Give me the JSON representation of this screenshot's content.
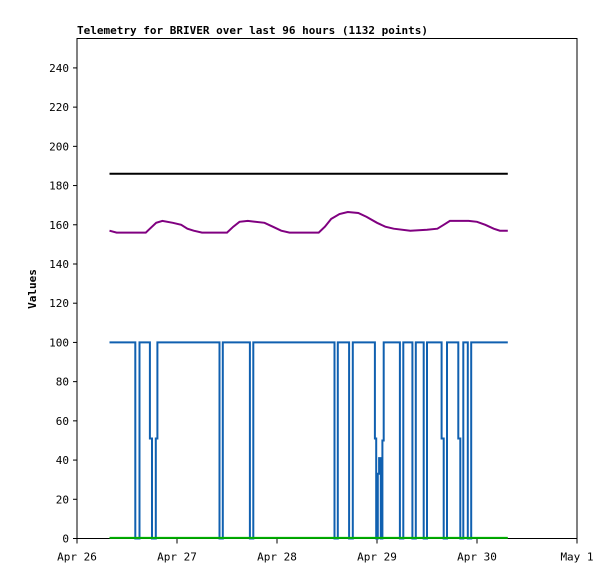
{
  "chart_data": {
    "type": "line",
    "title": "Telemetry for BRIVER over last 96 hours (1132 points)",
    "xlabel": "",
    "ylabel": "Values",
    "xlim": [
      0,
      120
    ],
    "ylim": [
      0,
      255
    ],
    "x_unit": "hours since Apr 26 00:00",
    "x_ticks": [
      {
        "x": 0,
        "label": "Apr 26"
      },
      {
        "x": 24,
        "label": "Apr 27"
      },
      {
        "x": 48,
        "label": "Apr 28"
      },
      {
        "x": 72,
        "label": "Apr 29"
      },
      {
        "x": 96,
        "label": "Apr 30"
      },
      {
        "x": 120,
        "label": "May 1"
      }
    ],
    "y_ticks": [
      0,
      20,
      40,
      60,
      80,
      100,
      120,
      140,
      160,
      180,
      200,
      220,
      240
    ],
    "grid": false,
    "series": [
      {
        "color": "#000000",
        "points": [
          [
            7.8,
            186
          ],
          [
            103.4,
            186
          ]
        ]
      },
      {
        "color": "#800080",
        "points": [
          [
            7.8,
            157
          ],
          [
            9.5,
            156
          ],
          [
            16.5,
            156
          ],
          [
            17.5,
            158
          ],
          [
            19.0,
            161
          ],
          [
            20.5,
            162
          ],
          [
            23.0,
            161
          ],
          [
            25.0,
            160
          ],
          [
            26.5,
            158
          ],
          [
            28.0,
            157
          ],
          [
            30.0,
            156
          ],
          [
            36.0,
            156
          ],
          [
            37.5,
            159
          ],
          [
            39.0,
            161.5
          ],
          [
            41.0,
            162
          ],
          [
            45.0,
            161
          ],
          [
            47.0,
            159
          ],
          [
            49.0,
            157
          ],
          [
            51.0,
            156
          ],
          [
            58.0,
            156
          ],
          [
            59.5,
            159
          ],
          [
            61.0,
            163
          ],
          [
            63.0,
            165.5
          ],
          [
            65.0,
            166.5
          ],
          [
            67.5,
            166
          ],
          [
            69.5,
            164
          ],
          [
            72.0,
            161
          ],
          [
            74.0,
            159
          ],
          [
            76.0,
            158
          ],
          [
            80.0,
            157
          ],
          [
            84.0,
            157.5
          ],
          [
            86.5,
            158
          ],
          [
            88.0,
            160
          ],
          [
            89.5,
            162
          ],
          [
            94.0,
            162
          ],
          [
            96.0,
            161.5
          ],
          [
            98.0,
            160
          ],
          [
            100.0,
            158
          ],
          [
            101.5,
            157
          ],
          [
            103.4,
            157
          ]
        ]
      },
      {
        "color": "#1060b0",
        "points": [
          [
            7.8,
            100
          ],
          [
            14.0,
            100
          ],
          [
            14.0,
            0
          ],
          [
            15.0,
            0
          ],
          [
            15.0,
            100
          ],
          [
            17.5,
            100
          ],
          [
            17.5,
            51
          ],
          [
            18.0,
            51
          ],
          [
            18.0,
            0
          ],
          [
            18.9,
            0
          ],
          [
            18.9,
            51
          ],
          [
            19.3,
            51
          ],
          [
            19.3,
            100
          ],
          [
            34.2,
            100
          ],
          [
            34.2,
            0
          ],
          [
            35.0,
            0
          ],
          [
            35.0,
            100
          ],
          [
            41.5,
            100
          ],
          [
            41.5,
            0
          ],
          [
            42.3,
            0
          ],
          [
            42.3,
            100
          ],
          [
            61.8,
            100
          ],
          [
            61.8,
            0
          ],
          [
            62.6,
            0
          ],
          [
            62.6,
            100
          ],
          [
            65.3,
            100
          ],
          [
            65.3,
            0
          ],
          [
            66.2,
            0
          ],
          [
            66.2,
            100
          ],
          [
            71.5,
            100
          ],
          [
            71.5,
            51
          ],
          [
            71.8,
            51
          ],
          [
            71.8,
            0
          ],
          [
            72.2,
            0
          ],
          [
            72.2,
            33
          ],
          [
            72.5,
            33
          ],
          [
            72.5,
            41
          ],
          [
            72.9,
            41
          ],
          [
            72.9,
            0
          ],
          [
            73.3,
            0
          ],
          [
            73.3,
            50
          ],
          [
            73.6,
            50
          ],
          [
            73.6,
            100
          ],
          [
            77.5,
            100
          ],
          [
            77.5,
            0
          ],
          [
            78.3,
            0
          ],
          [
            78.3,
            100
          ],
          [
            80.5,
            100
          ],
          [
            80.5,
            0
          ],
          [
            81.3,
            0
          ],
          [
            81.3,
            100
          ],
          [
            83.2,
            100
          ],
          [
            83.2,
            0
          ],
          [
            84.0,
            0
          ],
          [
            84.0,
            100
          ],
          [
            87.5,
            100
          ],
          [
            87.5,
            51
          ],
          [
            88.0,
            51
          ],
          [
            88.0,
            0
          ],
          [
            88.8,
            0
          ],
          [
            88.8,
            100
          ],
          [
            91.5,
            100
          ],
          [
            91.5,
            51
          ],
          [
            92.0,
            51
          ],
          [
            92.0,
            0
          ],
          [
            92.7,
            0
          ],
          [
            92.7,
            100
          ],
          [
            93.8,
            100
          ],
          [
            93.8,
            0
          ],
          [
            94.6,
            0
          ],
          [
            94.6,
            100
          ],
          [
            103.4,
            100
          ]
        ]
      },
      {
        "color": "#00b000",
        "points": [
          [
            7.8,
            0.3
          ],
          [
            103.4,
            0.3
          ]
        ]
      }
    ]
  }
}
